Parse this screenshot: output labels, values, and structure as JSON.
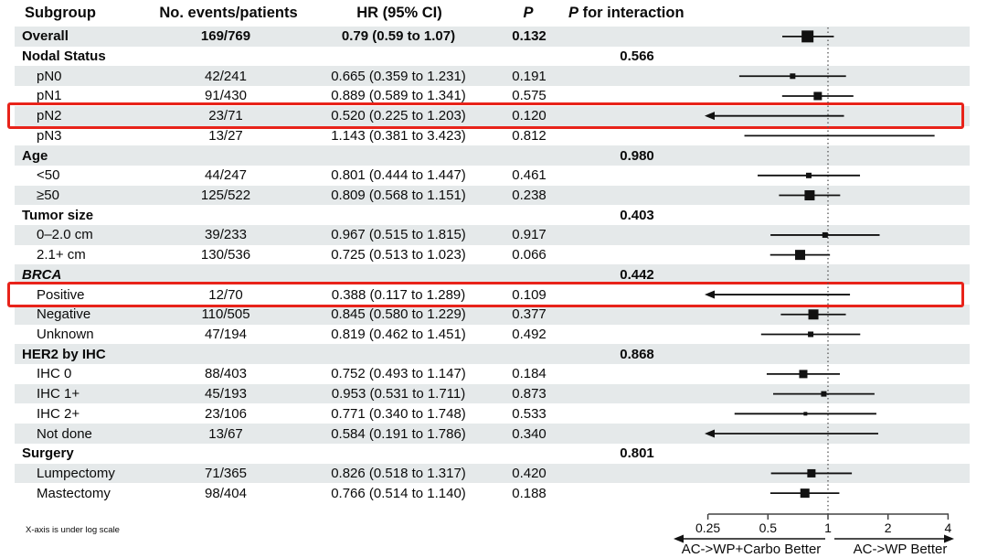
{
  "header": {
    "subgroup": "Subgroup",
    "events": "No. events/patients",
    "hr": "HR (95% CI)",
    "p": "P",
    "p_interaction_p": "P",
    "p_interaction_rest": " for interaction"
  },
  "footnote": "X-axis is under log scale",
  "axis": {
    "tick_labels": [
      "0.25",
      "0.5",
      "1",
      "2",
      "4"
    ],
    "tick_values": [
      0.25,
      0.5,
      1,
      2,
      4
    ],
    "left_direction_label": "AC->WP+Carbo Better",
    "right_direction_label": "AC->WP Better"
  },
  "colors": {
    "row_shade": "#e5e9ea",
    "highlight_red": "#e8231a",
    "line": "#111111",
    "axis": "#444444",
    "text": "#0a0a0a"
  },
  "chart_data": {
    "type": "forest",
    "x_scale": "log",
    "xlim": [
      0.25,
      4
    ],
    "reference_line": 1,
    "columns": [
      "Subgroup",
      "No. events/patients",
      "HR (95% CI)",
      "P",
      "P for interaction"
    ],
    "rows": [
      {
        "label": "Overall",
        "kind": "overall",
        "events": "169/769",
        "hr_text": "0.79 (0.59 to 1.07)",
        "p": "0.132",
        "est": 0.79,
        "lo": 0.59,
        "hi": 1.07,
        "marker_size": 13,
        "clip_low": false,
        "shaded": true,
        "highlight": false
      },
      {
        "label": "Nodal Status",
        "kind": "group",
        "p_interaction": "0.566",
        "shaded": false,
        "highlight": false
      },
      {
        "label": "pN0",
        "kind": "item",
        "events": "42/241",
        "hr_text": "0.665 (0.359 to 1.231)",
        "p": "0.191",
        "est": 0.665,
        "lo": 0.359,
        "hi": 1.231,
        "marker_size": 6,
        "clip_low": false,
        "shaded": true,
        "highlight": false
      },
      {
        "label": "pN1",
        "kind": "item",
        "events": "91/430",
        "hr_text": "0.889 (0.589 to 1.341)",
        "p": "0.575",
        "est": 0.889,
        "lo": 0.589,
        "hi": 1.341,
        "marker_size": 9,
        "clip_low": false,
        "shaded": false,
        "highlight": false
      },
      {
        "label": "pN2",
        "kind": "item",
        "events": "23/71",
        "hr_text": "0.520 (0.225 to 1.203)",
        "p": "0.120",
        "est": 0.52,
        "lo": 0.225,
        "hi": 1.203,
        "marker_size": 0,
        "clip_low": true,
        "shaded": true,
        "highlight": true
      },
      {
        "label": "pN3",
        "kind": "item",
        "events": "13/27",
        "hr_text": "1.143 (0.381 to 3.423)",
        "p": "0.812",
        "est": 1.143,
        "lo": 0.381,
        "hi": 3.423,
        "marker_size": 0,
        "clip_low": false,
        "shaded": false,
        "highlight": false
      },
      {
        "label": "Age",
        "kind": "group",
        "p_interaction": "0.980",
        "shaded": true,
        "highlight": false
      },
      {
        "label": "<50",
        "kind": "item",
        "events": "44/247",
        "hr_text": "0.801 (0.444 to 1.447)",
        "p": "0.461",
        "est": 0.801,
        "lo": 0.444,
        "hi": 1.447,
        "marker_size": 6,
        "clip_low": false,
        "shaded": false,
        "highlight": false
      },
      {
        "label": "≥50",
        "kind": "item",
        "events": "125/522",
        "hr_text": "0.809 (0.568 to 1.151)",
        "p": "0.238",
        "est": 0.809,
        "lo": 0.568,
        "hi": 1.151,
        "marker_size": 11,
        "clip_low": false,
        "shaded": true,
        "highlight": false
      },
      {
        "label": "Tumor size",
        "kind": "group",
        "p_interaction": "0.403",
        "shaded": false,
        "highlight": false
      },
      {
        "label": "0–2.0 cm",
        "kind": "item",
        "events": "39/233",
        "hr_text": "0.967 (0.515 to 1.815)",
        "p": "0.917",
        "est": 0.967,
        "lo": 0.515,
        "hi": 1.815,
        "marker_size": 6,
        "clip_low": false,
        "shaded": true,
        "highlight": false
      },
      {
        "label": "2.1+ cm",
        "kind": "item",
        "events": "130/536",
        "hr_text": "0.725 (0.513 to 1.023)",
        "p": "0.066",
        "est": 0.725,
        "lo": 0.513,
        "hi": 1.023,
        "marker_size": 11,
        "clip_low": false,
        "shaded": false,
        "highlight": false
      },
      {
        "label": "BRCA",
        "kind": "group",
        "italic": true,
        "p_interaction": "0.442",
        "shaded": true,
        "highlight": false
      },
      {
        "label": "Positive",
        "kind": "item",
        "events": "12/70",
        "hr_text": "0.388 (0.117 to 1.289)",
        "p": "0.109",
        "est": 0.388,
        "lo": 0.117,
        "hi": 1.289,
        "marker_size": 0,
        "clip_low": true,
        "shaded": false,
        "highlight": true
      },
      {
        "label": "Negative",
        "kind": "item",
        "events": "110/505",
        "hr_text": "0.845 (0.580 to 1.229)",
        "p": "0.377",
        "est": 0.845,
        "lo": 0.58,
        "hi": 1.229,
        "marker_size": 11,
        "clip_low": false,
        "shaded": true,
        "highlight": false
      },
      {
        "label": "Unknown",
        "kind": "item",
        "events": "47/194",
        "hr_text": "0.819 (0.462 to 1.451)",
        "p": "0.492",
        "est": 0.819,
        "lo": 0.462,
        "hi": 1.451,
        "marker_size": 6,
        "clip_low": false,
        "shaded": false,
        "highlight": false
      },
      {
        "label": "HER2 by IHC",
        "kind": "group",
        "p_interaction": "0.868",
        "shaded": true,
        "highlight": false
      },
      {
        "label": "IHC 0",
        "kind": "item",
        "events": "88/403",
        "hr_text": "0.752 (0.493 to 1.147)",
        "p": "0.184",
        "est": 0.752,
        "lo": 0.493,
        "hi": 1.147,
        "marker_size": 9,
        "clip_low": false,
        "shaded": false,
        "highlight": false
      },
      {
        "label": "IHC 1+",
        "kind": "item",
        "events": "45/193",
        "hr_text": "0.953 (0.531 to 1.711)",
        "p": "0.873",
        "est": 0.953,
        "lo": 0.531,
        "hi": 1.711,
        "marker_size": 6,
        "clip_low": false,
        "shaded": true,
        "highlight": false
      },
      {
        "label": "IHC 2+",
        "kind": "item",
        "events": "23/106",
        "hr_text": "0.771 (0.340 to 1.748)",
        "p": "0.533",
        "est": 0.771,
        "lo": 0.34,
        "hi": 1.748,
        "marker_size": 4,
        "clip_low": false,
        "shaded": false,
        "highlight": false
      },
      {
        "label": "Not done",
        "kind": "item",
        "events": "13/67",
        "hr_text": "0.584 (0.191 to 1.786)",
        "p": "0.340",
        "est": 0.584,
        "lo": 0.191,
        "hi": 1.786,
        "marker_size": 0,
        "clip_low": true,
        "shaded": true,
        "highlight": false
      },
      {
        "label": "Surgery",
        "kind": "group",
        "p_interaction": "0.801",
        "shaded": false,
        "highlight": false
      },
      {
        "label": "Lumpectomy",
        "kind": "item",
        "events": "71/365",
        "hr_text": "0.826 (0.518 to 1.317)",
        "p": "0.420",
        "est": 0.826,
        "lo": 0.518,
        "hi": 1.317,
        "marker_size": 9,
        "clip_low": false,
        "shaded": true,
        "highlight": false
      },
      {
        "label": "Mastectomy",
        "kind": "item",
        "events": "98/404",
        "hr_text": "0.766 (0.514 to 1.140)",
        "p": "0.188",
        "est": 0.766,
        "lo": 0.514,
        "hi": 1.14,
        "marker_size": 10,
        "clip_low": false,
        "shaded": false,
        "highlight": false
      }
    ]
  }
}
